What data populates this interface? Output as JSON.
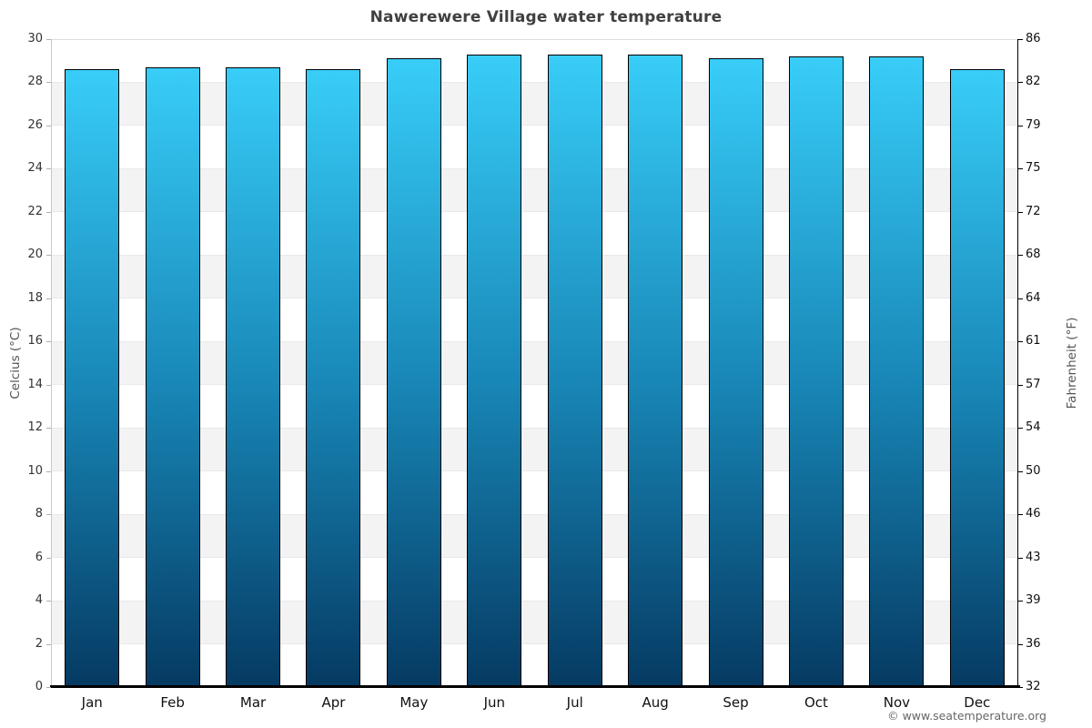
{
  "title": "Nawerewere Village water temperature",
  "footer": {
    "copyright": "© www.seatemperature.org"
  },
  "axes": {
    "left_title": "Celcius (°C)",
    "right_title": "Fahrenheit (°F)"
  },
  "chart_data": {
    "type": "bar",
    "title": "Nawerewere Village water temperature",
    "categories": [
      "Jan",
      "Feb",
      "Mar",
      "Apr",
      "May",
      "Jun",
      "Jul",
      "Aug",
      "Sep",
      "Oct",
      "Nov",
      "Dec"
    ],
    "values": [
      28.6,
      28.7,
      28.7,
      28.6,
      29.1,
      29.3,
      29.3,
      29.3,
      29.1,
      29.2,
      29.2,
      28.6
    ],
    "unit": "°C",
    "xlabel": "",
    "ylabel_left": "Celcius (°C)",
    "ylabel_right": "Fahrenheit (°F)",
    "ylim_celsius": [
      0,
      30
    ],
    "celsius_ticks": [
      0,
      2,
      4,
      6,
      8,
      10,
      12,
      14,
      16,
      18,
      20,
      22,
      24,
      26,
      28,
      30
    ],
    "fahrenheit_tick_labels": [
      "32",
      "36",
      "39",
      "43",
      "46",
      "50",
      "54",
      "57",
      "61",
      "64",
      "68",
      "72",
      "75",
      "79",
      "82",
      "86"
    ],
    "grid": "alternating horizontal bands every 2°C, gray on 28-26, 24-22, 20-18, 16-14, 12-10, 8-6, 4-2",
    "legend": "none",
    "colors": {
      "bar_gradient_top": "#38cdf8",
      "bar_gradient_mid": "#1886b6",
      "bar_gradient_bottom": "#053a62",
      "bar_border": "#000000",
      "band_gray": "#f3f3f3",
      "band_white": "#ffffff",
      "axis_left_line": "#c9c9c9",
      "axis_right_line": "#000000",
      "axis_bottom_line": "#000000",
      "title_color": "#404040",
      "background": "#ffffff"
    }
  }
}
